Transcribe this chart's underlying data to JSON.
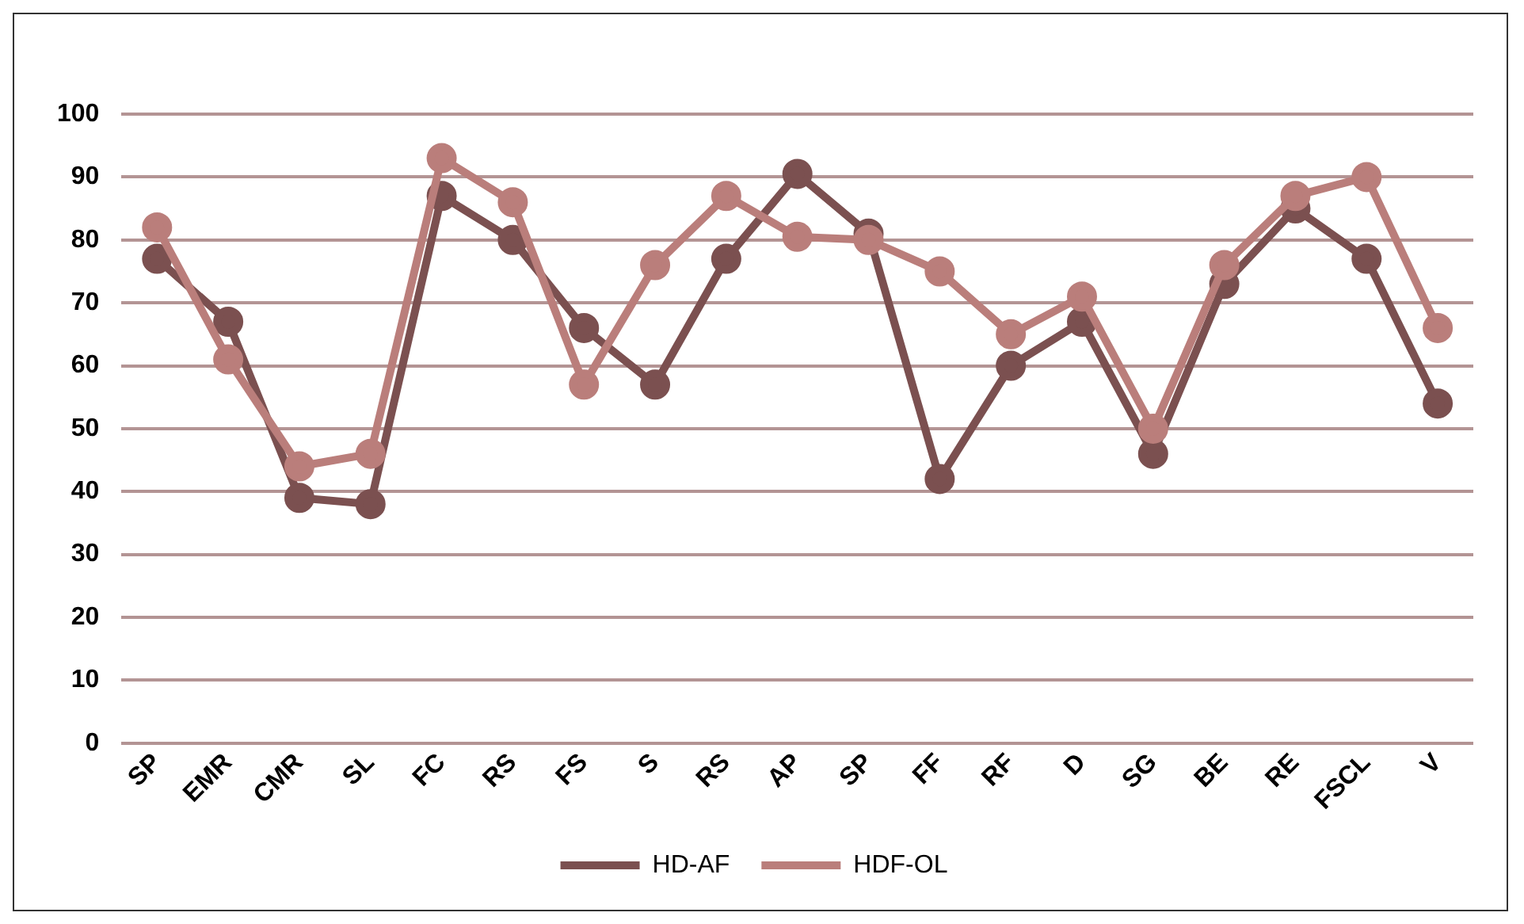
{
  "chart_data": {
    "type": "line",
    "categories": [
      "SP",
      "EMR",
      "CMR",
      "SL",
      "FC",
      "RS",
      "FS",
      "S",
      "RS",
      "AP",
      "SP",
      "FF",
      "RF",
      "D",
      "SG",
      "BE",
      "RE",
      "FSCL",
      "V"
    ],
    "series": [
      {
        "name": "HD-AF",
        "color": "#7b5050",
        "values": [
          77,
          67,
          39,
          38,
          87,
          80,
          66,
          57,
          77,
          90.5,
          81,
          42,
          60,
          67,
          46,
          73,
          85,
          77,
          54
        ]
      },
      {
        "name": "HDF-OL",
        "color": "#ba7e7b",
        "values": [
          82,
          61,
          44,
          46,
          93,
          86,
          57,
          76,
          87,
          80.5,
          80,
          75,
          65,
          71,
          50,
          76,
          87,
          90,
          66
        ]
      }
    ],
    "ylim": [
      0,
      100
    ],
    "yticks": [
      0,
      10,
      20,
      30,
      40,
      50,
      60,
      70,
      80,
      90,
      100
    ],
    "grid": "y",
    "legend": "bottom",
    "marker": "circle",
    "line_style": "solid"
  }
}
